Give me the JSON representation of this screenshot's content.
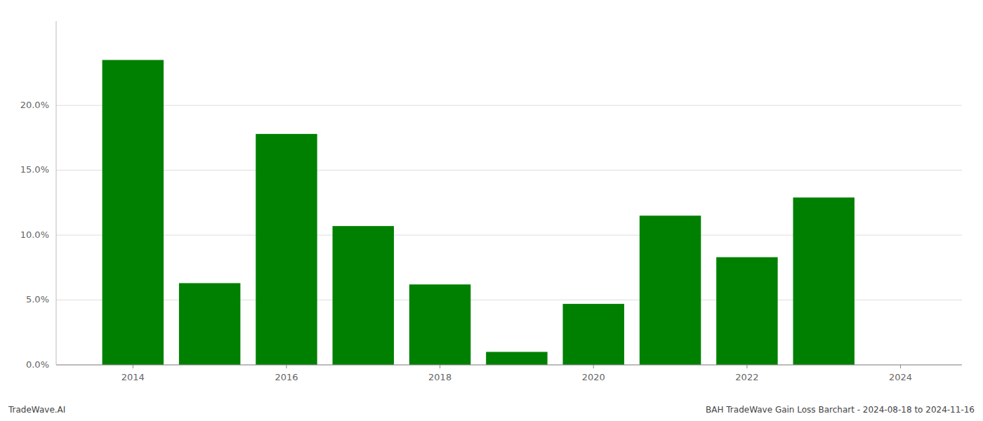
{
  "chart_data": {
    "type": "bar",
    "x": [
      2014,
      2015,
      2016,
      2017,
      2018,
      2019,
      2020,
      2021,
      2022,
      2023,
      2024
    ],
    "values": [
      0.235,
      0.063,
      0.178,
      0.107,
      0.062,
      0.01,
      0.047,
      0.115,
      0.083,
      0.129,
      0.0
    ],
    "color": "#008000",
    "xlim": [
      2013.0,
      2024.8
    ],
    "xticks": [
      2014,
      2016,
      2018,
      2020,
      2022,
      2024
    ],
    "ylim": [
      0,
      0.265
    ],
    "yticks": [
      {
        "value": 0.0,
        "label": "0.0%"
      },
      {
        "value": 0.05,
        "label": "5.0%"
      },
      {
        "value": 0.1,
        "label": "10.0%"
      },
      {
        "value": 0.15,
        "label": "15.0%"
      },
      {
        "value": 0.2,
        "label": "20.0%"
      }
    ],
    "grid": true,
    "annotations": [
      "TradeWave.AI",
      "BAH TradeWave Gain Loss Barchart - 2024-08-18 to 2024-11-16"
    ]
  }
}
